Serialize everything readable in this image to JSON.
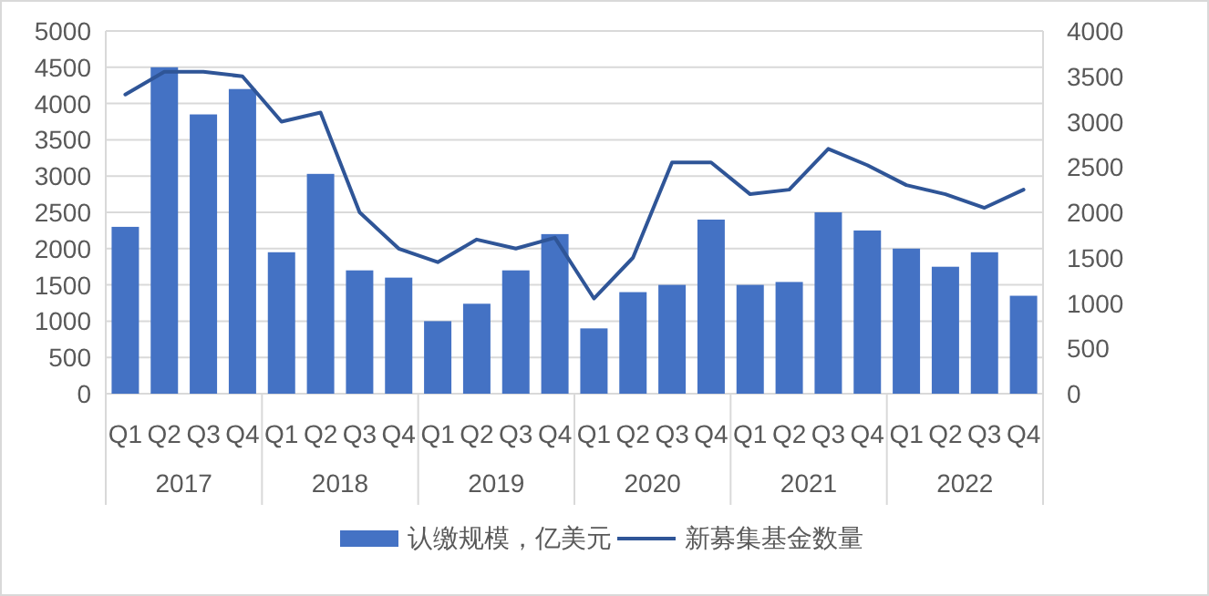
{
  "chart_data": {
    "type": "bar",
    "categories": [
      "Q1",
      "Q2",
      "Q3",
      "Q4",
      "Q1",
      "Q2",
      "Q3",
      "Q4",
      "Q1",
      "Q2",
      "Q3",
      "Q4",
      "Q1",
      "Q2",
      "Q3",
      "Q4",
      "Q1",
      "Q2",
      "Q3",
      "Q4",
      "Q1",
      "Q2",
      "Q3",
      "Q4"
    ],
    "series": [
      {
        "name": "认缴规模，亿美元",
        "color": "#4472c4",
        "values": [
          2300,
          4500,
          3850,
          4200,
          1950,
          3030,
          1700,
          1600,
          1000,
          1240,
          1700,
          2200,
          900,
          1400,
          1500,
          2400,
          1500,
          1540,
          2500,
          2250,
          2000,
          1750,
          1950,
          1350
        ]
      },
      {
        "name": "新募集基金数量",
        "type": "line",
        "axis": "y2",
        "color": "#2f5597",
        "values": [
          3300,
          3550,
          3550,
          3500,
          3000,
          3100,
          2000,
          1600,
          1450,
          1700,
          1600,
          1720,
          1050,
          1500,
          2550,
          2550,
          2200,
          2250,
          2700,
          2520,
          2300,
          2200,
          2050,
          2250
        ]
      }
    ],
    "annotations": [
      "2017",
      "2018",
      "2019",
      "2020",
      "2021",
      "2022"
    ],
    "ylim": [
      0,
      5000
    ],
    "yticks": [
      0,
      500,
      1000,
      1500,
      2000,
      2500,
      3000,
      3500,
      4000,
      4500,
      5000
    ],
    "y2lim": [
      0,
      4000
    ],
    "y2ticks": [
      0,
      500,
      1000,
      1500,
      2000,
      2500,
      3000,
      3500,
      4000
    ],
    "grid": "y",
    "legend": "bottom"
  }
}
